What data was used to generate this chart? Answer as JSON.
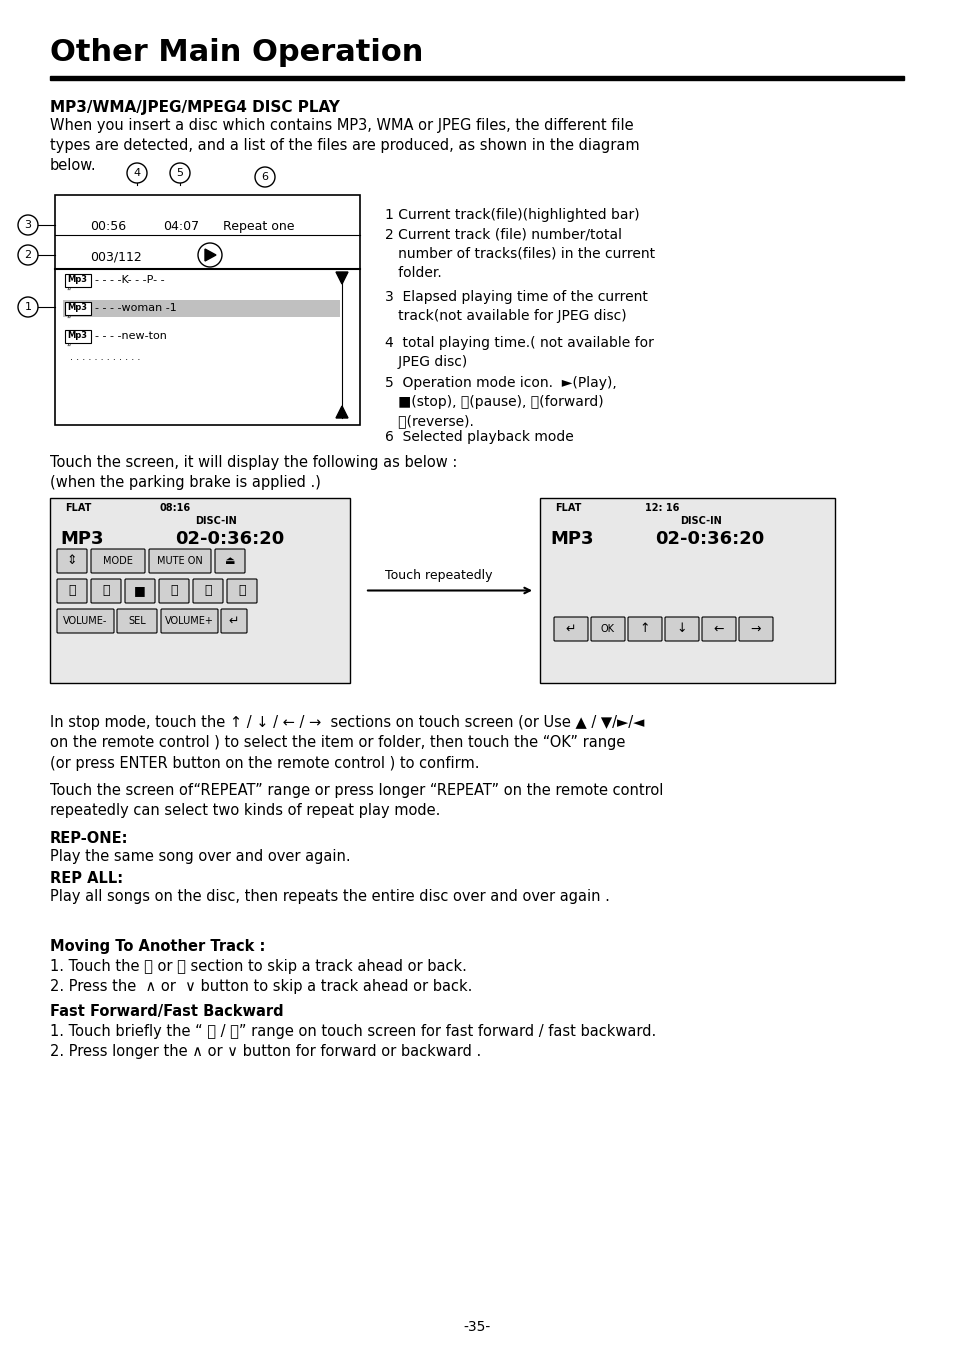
{
  "title": "Other Main Operation",
  "section_title": "MP3/WMA/JPEG/MPEG4 DISC PLAY",
  "intro_text": "When you insert a disc which contains MP3, WMA or JPEG files, the different file\ntypes are detected, and a list of the files are produced, as shown in the diagram\nbelow.",
  "numbered_items": [
    "1 Current track(file)(highlighted bar)",
    "2 Current track (file) number/total\n   number of tracks(files) in the current\n   folder.",
    "3  Elapsed playing time of the current\n   track(not available for JPEG disc)",
    "4  total playing time.( not available for\n   JPEG disc)",
    "5  Operation mode icon.  ►(Play),\n   ■(stop), ⏸(pause), ⏩(forward)\n   ⏪(reverse).",
    "6  Selected playback mode"
  ],
  "touch_text": "Touch the screen, it will display the following as below :\n(when the parking brake is applied .)",
  "stop_mode_text": "In stop mode, touch the ↑ / ↓ / ← / →  sections on touch screen (or Use ▲ / ▼/►/◄\non the remote control ) to select the item or folder, then touch the “OK” range\n(or press ENTER button on the remote control ) to confirm.",
  "repeat_text": "Touch the screen of“REPEAT” range or press longer “REPEAT” on the remote control\nrepeatedly can select two kinds of repeat play mode.",
  "rep_one_label": "REP-ONE:",
  "rep_one_text": "Play the same song over and over again.",
  "rep_all_label": "REP ALL:",
  "rep_all_text": "Play all songs on the disc, then repeats the entire disc over and over again .",
  "moving_title": "Moving To Another Track :",
  "moving_items": [
    "1. Touch the ⏭ or ⏮ section to skip a track ahead or back.",
    "2. Press the  ∧ or  ∨ button to skip a track ahead or back."
  ],
  "fast_title": "Fast Forward/Fast Backward",
  "fast_items": [
    "1. Touch briefly the “ ⏩ / ⏪” range on touch screen for fast forward / fast backward.",
    "2. Press longer the ∧ or ∨ button for forward or backward ."
  ],
  "page_num": "-35-",
  "bg_color": "#ffffff"
}
